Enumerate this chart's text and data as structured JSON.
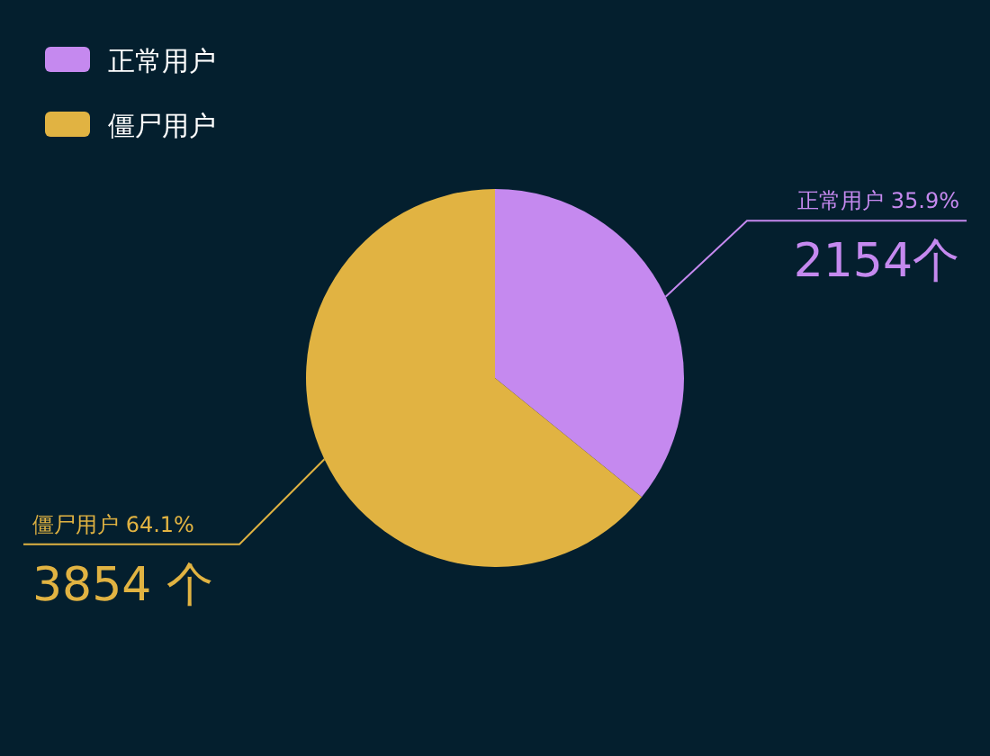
{
  "chart_data": {
    "type": "pie",
    "categories": [
      "正常用户",
      "僵尸用户"
    ],
    "values": [
      2154,
      3854
    ],
    "colors": [
      "#c589ef",
      "#e1b342"
    ],
    "value_labels": [
      "2154个",
      "3854 个"
    ],
    "annotations": [
      "正常用户  35.9%",
      "僵尸用户  64.1%"
    ],
    "legend": "top left"
  }
}
